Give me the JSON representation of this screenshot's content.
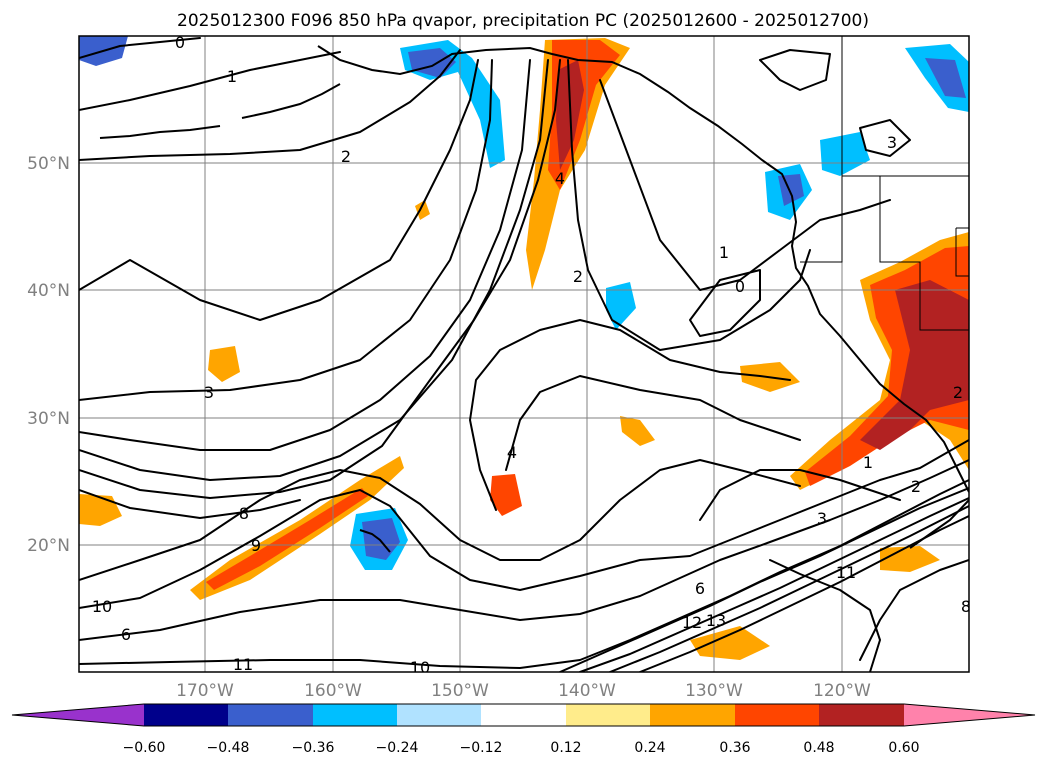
{
  "title": "2025012300 F096 850 hPa qvapor, precipitation PC (2025012600 - 2025012700)",
  "lat_labels": [
    "50°N",
    "40°N",
    "30°N",
    "20°N"
  ],
  "lon_labels": [
    "170°W",
    "160°W",
    "150°W",
    "140°W",
    "130°W",
    "120°W"
  ],
  "colorbar": {
    "tick_labels": [
      "−0.60",
      "−0.48",
      "−0.36",
      "−0.24",
      "−0.12",
      "0.12",
      "0.24",
      "0.36",
      "0.48",
      "0.60"
    ],
    "colors": [
      "#9932cc",
      "#00008b",
      "#3a5fcd",
      "#00bfff",
      "#b0e2ff",
      "#ffffff",
      "#ffec8b",
      "#ffa500",
      "#ff4500",
      "#b22222",
      "#ff82ab"
    ]
  },
  "contour_labels": [
    "0",
    "1",
    "2",
    "3",
    "2",
    "4",
    "1",
    "0",
    "3",
    "4",
    "8",
    "9",
    "10",
    "6",
    "11",
    "10",
    "3",
    "2",
    "2",
    "11",
    "13",
    "12",
    "6",
    "8",
    "1"
  ]
}
